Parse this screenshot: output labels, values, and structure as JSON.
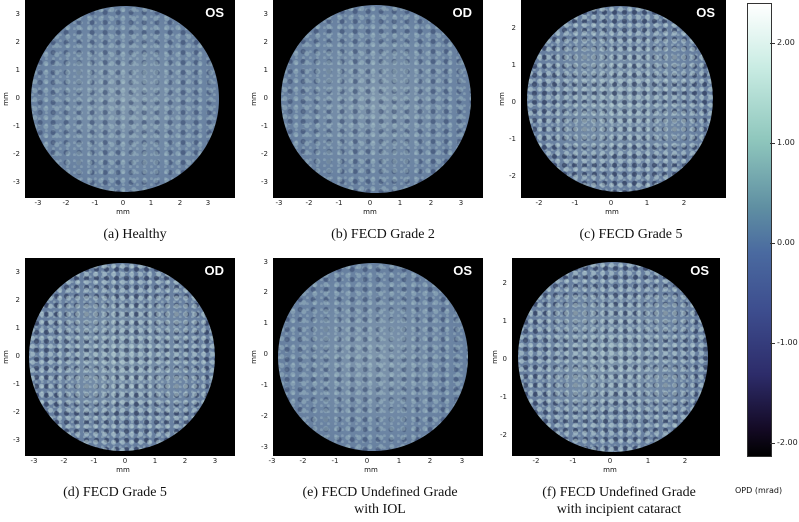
{
  "panels": [
    {
      "badge": "OS",
      "caption": [
        "(a) Healthy"
      ],
      "yticks": [
        "3",
        "2",
        "1",
        "0",
        "-1",
        "-2",
        "-3"
      ],
      "xticks": [
        "-3",
        "-2",
        "-1",
        "0",
        "1",
        "2",
        "3"
      ],
      "ylabel": "mm",
      "xlabel": "mm"
    },
    {
      "badge": "OD",
      "caption": [
        "(b) FECD Grade 2"
      ],
      "yticks": [
        "3",
        "2",
        "1",
        "0",
        "-1",
        "-2",
        "-3"
      ],
      "xticks": [
        "-3",
        "-2",
        "-1",
        "0",
        "1",
        "2",
        "3"
      ],
      "ylabel": "mm",
      "xlabel": "mm"
    },
    {
      "badge": "OS",
      "caption": [
        "(c) FECD Grade 5"
      ],
      "yticks": [
        "2",
        "1",
        "0",
        "-1",
        "-2"
      ],
      "xticks": [
        "-2",
        "-1",
        "0",
        "1",
        "2"
      ],
      "ylabel": "mm",
      "xlabel": "mm"
    },
    {
      "badge": "OD",
      "caption": [
        "(d) FECD Grade 5"
      ],
      "yticks": [
        "3",
        "2",
        "1",
        "0",
        "-1",
        "-2",
        "-3"
      ],
      "xticks": [
        "-3",
        "-2",
        "-1",
        "0",
        "1",
        "2",
        "3"
      ],
      "ylabel": "mm",
      "xlabel": "mm"
    },
    {
      "badge": "OS",
      "caption": [
        "(e) FECD Undefined Grade",
        "with IOL"
      ],
      "yticks": [
        "3",
        "2",
        "1",
        "0",
        "-1",
        "-2",
        "-3"
      ],
      "xticks": [
        "-3",
        "-2",
        "-1",
        "0",
        "1",
        "2",
        "3"
      ],
      "ylabel": "mm",
      "xlabel": "mm"
    },
    {
      "badge": "OS",
      "caption": [
        "(f) FECD Undefined Grade",
        "with incipient cataract"
      ],
      "yticks": [
        "2",
        "1",
        "0",
        "-1",
        "-2"
      ],
      "xticks": [
        "-2",
        "-1",
        "0",
        "1",
        "2"
      ],
      "ylabel": "mm",
      "xlabel": "mm"
    }
  ],
  "colorbar": {
    "title": "OPD (mrad)",
    "ticks": [
      "2.00",
      "1.00",
      "0.00",
      "-1.00",
      "-2.00"
    ],
    "colors": [
      "#ffffff",
      "#8fc7bd",
      "#4a6aa0",
      "#2d2c6a",
      "#000000"
    ]
  }
}
